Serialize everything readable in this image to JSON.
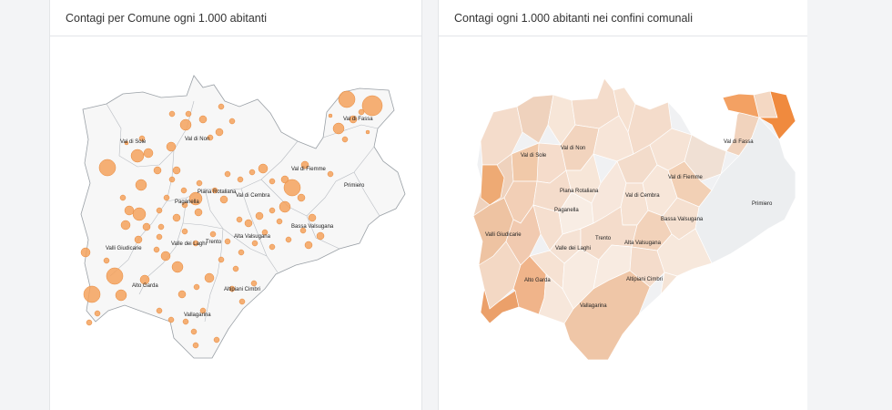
{
  "colors": {
    "accent": "#f5a25d",
    "bubble_stroke": "#e8893b",
    "region_fill": "#f7f7f7",
    "choropleth_light": "#eff0f2",
    "choropleth_mid": "#f2c7a2",
    "choropleth_dark": "#f07e2b"
  },
  "panels": [
    {
      "title": "Contagi per Comune ogni 1.000 abitanti",
      "labels": {
        "val_di_sole": "Val di Sole",
        "val_di_non": "Val di Non",
        "val_di_fassa": "Val di Fassa",
        "val_di_fiemme": "Val di Fiemme",
        "primiero": "Primiero",
        "piana_rotaliana": "Piana Rotaliana",
        "paganella": "Paganella",
        "val_di_cembra": "Val di Cembra",
        "bassa_valsugana": "Bassa Valsugana",
        "alta_valsugana": "Alta Valsugana",
        "trento": "Trento",
        "valle_dei_laghi": "Valle dei Laghi",
        "valli_giudicarie": "Valli Giudicarie",
        "alto_garda": "Alto Garda",
        "altipiani_cimbri": "Altipiani Cimbri",
        "vallagarina": "Vallagarina"
      }
    },
    {
      "title": "Contagi ogni 1.000 abitanti nei confini comunali",
      "labels": {
        "val_di_sole": "Val di Sole",
        "val_di_non": "Val di Non",
        "val_di_fassa": "Val di Fassa",
        "val_di_fiemme": "Val di Fiemme",
        "primiero": "Primiero",
        "piana_rotaliana": "Piana Rotaliana",
        "paganella": "Paganella",
        "val_di_cembra": "Val di Cembra",
        "bassa_valsugana": "Bassa Valsugana",
        "alta_valsugana": "Alta Valsugana",
        "trento": "Trento",
        "valle_dei_laghi": "Valle dei Laghi",
        "valli_giudicarie": "Valli Giudicarie",
        "alto_garda": "Alto Garda",
        "altipiani_cimbri": "Altipiani Cimbri",
        "vallagarina": "Vallagarina"
      }
    }
  ]
}
